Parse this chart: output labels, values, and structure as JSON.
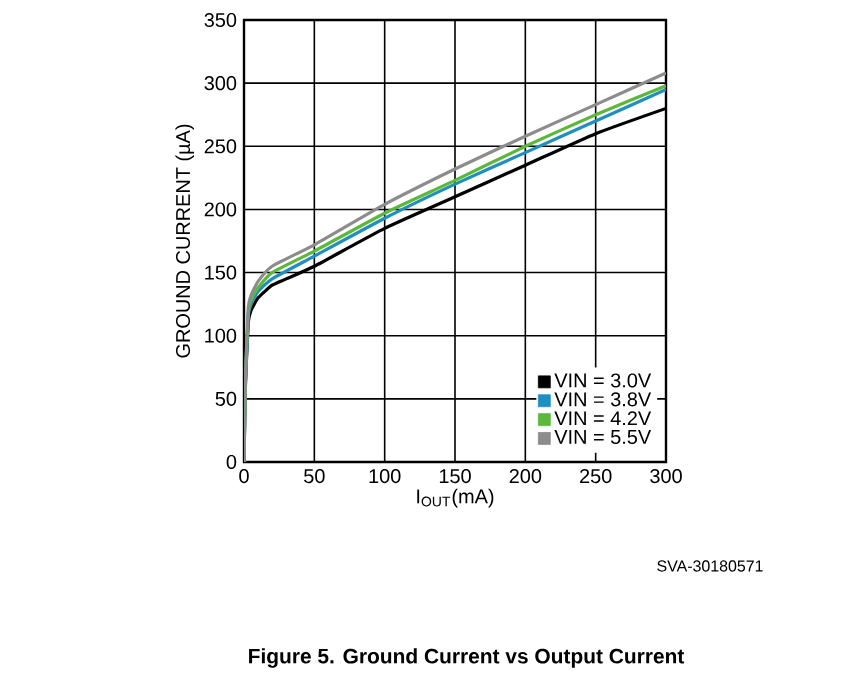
{
  "chart_data": {
    "type": "line",
    "xlabel": "I$_{OUT}$(mA)",
    "ylabel": "GROUND CURRENT (µA)",
    "xlim": [
      0,
      300
    ],
    "ylim": [
      0,
      350
    ],
    "xticks": [
      0,
      50,
      100,
      150,
      200,
      250,
      300
    ],
    "yticks": [
      0,
      50,
      100,
      150,
      200,
      250,
      300,
      350
    ],
    "grid": true,
    "legend": "bottom right",
    "annotations": [
      "SVA-30180571",
      "Figure 5. Ground Current vs Output Current"
    ],
    "series": [
      {
        "name": "VIN = 3.0V",
        "color": "#000000",
        "x": [
          0,
          1,
          3,
          5,
          10,
          20,
          30,
          50,
          100,
          150,
          200,
          250,
          300
        ],
        "values": [
          0,
          60,
          110,
          120,
          130,
          140,
          145,
          155,
          185,
          210,
          235,
          260,
          280
        ]
      },
      {
        "name": "VIN = 3.8V",
        "color": "#1f8fc0",
        "x": [
          0,
          1,
          3,
          5,
          10,
          20,
          50,
          100,
          150,
          200,
          250,
          300
        ],
        "values": [
          0,
          62,
          115,
          125,
          135,
          145,
          163,
          193,
          220,
          245,
          270,
          295
        ]
      },
      {
        "name": "VIN = 4.2V",
        "color": "#5cb83a",
        "x": [
          0,
          1,
          3,
          5,
          10,
          20,
          50,
          100,
          150,
          200,
          250,
          300
        ],
        "values": [
          0,
          64,
          118,
          128,
          138,
          150,
          167,
          197,
          223,
          250,
          275,
          298
        ]
      },
      {
        "name": "VIN = 5.5V",
        "color": "#8c8c8c",
        "x": [
          0,
          1,
          3,
          5,
          10,
          20,
          50,
          100,
          150,
          200,
          250,
          300
        ],
        "values": [
          0,
          66,
          122,
          132,
          143,
          155,
          172,
          204,
          232,
          258,
          283,
          308
        ]
      }
    ]
  }
}
